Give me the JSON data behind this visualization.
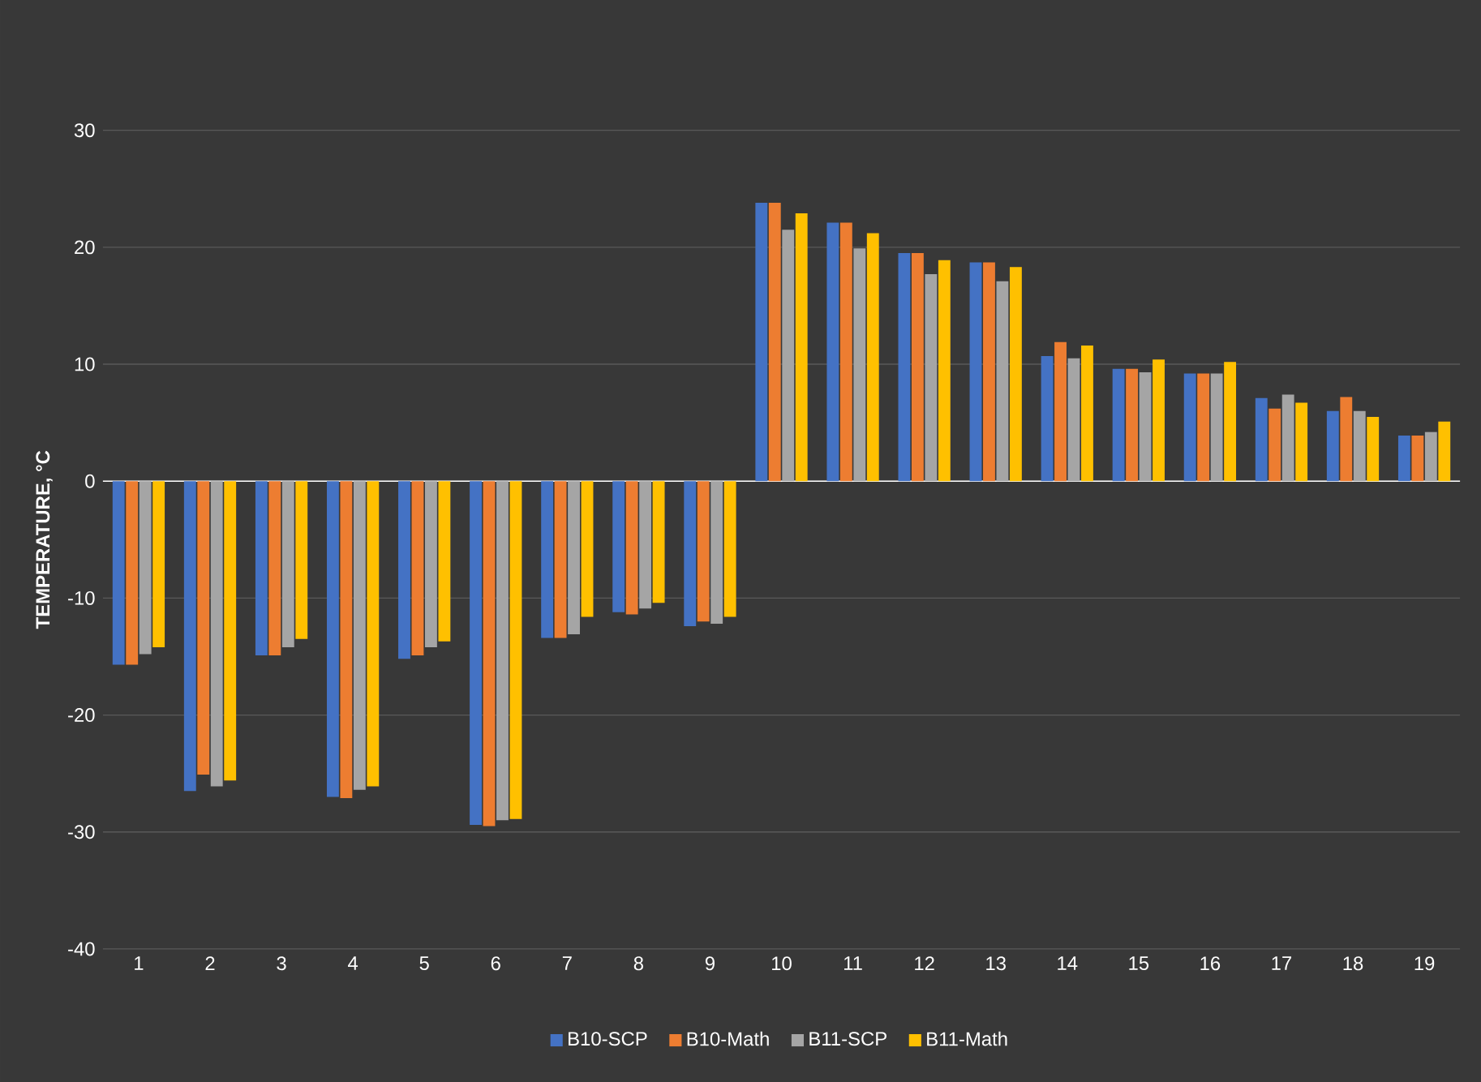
{
  "chart_data": {
    "type": "bar",
    "ylabel": "TEMPERATURE, °C",
    "categories": [
      "1",
      "2",
      "3",
      "4",
      "5",
      "6",
      "7",
      "8",
      "9",
      "10",
      "11",
      "12",
      "13",
      "14",
      "15",
      "16",
      "17",
      "18",
      "19"
    ],
    "series": [
      {
        "name": "B10-SCP",
        "color": "#4472c4",
        "values": [
          -15.7,
          -26.5,
          -14.9,
          -27.0,
          -15.2,
          -29.4,
          -13.4,
          -11.2,
          -12.4,
          23.8,
          22.1,
          19.5,
          18.7,
          10.7,
          9.6,
          9.2,
          7.1,
          6.0,
          3.9
        ]
      },
      {
        "name": "B10-Math",
        "color": "#ed7d31",
        "values": [
          -15.7,
          -25.1,
          -14.9,
          -27.1,
          -14.9,
          -29.5,
          -13.4,
          -11.4,
          -12.0,
          23.8,
          22.1,
          19.5,
          18.7,
          11.9,
          9.6,
          9.2,
          6.2,
          7.2,
          3.9
        ]
      },
      {
        "name": "B11-SCP",
        "color": "#a5a5a5",
        "values": [
          -14.8,
          -26.1,
          -14.2,
          -26.4,
          -14.2,
          -29.0,
          -13.1,
          -10.9,
          -12.2,
          21.5,
          19.9,
          17.7,
          17.1,
          10.5,
          9.3,
          9.2,
          7.4,
          6.0,
          4.2
        ]
      },
      {
        "name": "B11-Math",
        "color": "#ffc000",
        "values": [
          -14.2,
          -25.6,
          -13.5,
          -26.1,
          -13.7,
          -28.9,
          -11.6,
          -10.4,
          -11.6,
          22.9,
          21.2,
          18.9,
          18.3,
          11.6,
          10.4,
          10.2,
          6.7,
          5.5,
          5.1
        ]
      }
    ],
    "ylim": [
      -40,
      30
    ],
    "yticks": [
      -40,
      -30,
      -20,
      -10,
      0,
      10,
      20,
      30
    ],
    "grid": "y",
    "legend": "bottom"
  }
}
